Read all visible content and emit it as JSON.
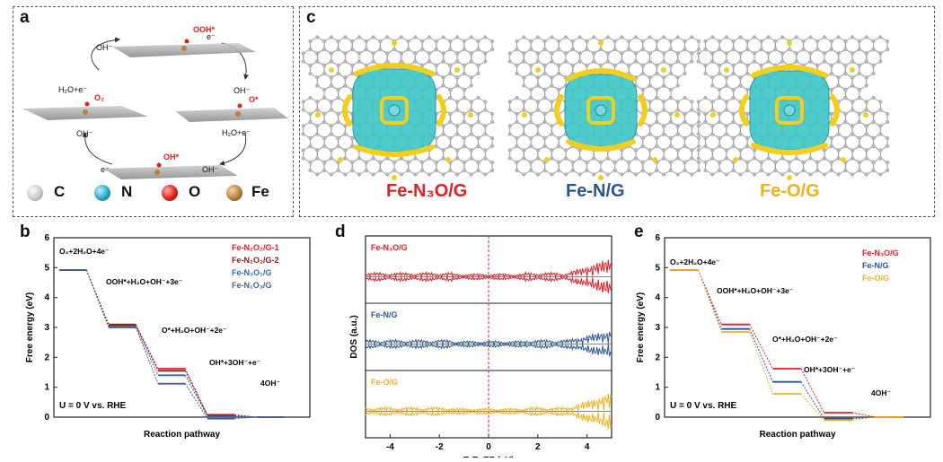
{
  "figure": {
    "panels": {
      "a": "a",
      "b": "b",
      "c": "c",
      "d": "d",
      "e": "e"
    }
  },
  "panel_a": {
    "labels": {
      "oh_top": "OH⁻",
      "e_top": "e⁻",
      "ooh": "OOH*",
      "h2o_e_left": "H₂O+e⁻",
      "o2": "O₂",
      "oh_left": "OH⁻",
      "oh_right_top": "OH⁻",
      "o_star": "O*",
      "h2o_e_right": "H₂O+e⁻",
      "e_bottom": "e⁻",
      "oh_star": "OH*",
      "oh_bottom_right": "OH⁻"
    },
    "legend": [
      {
        "symbol": "C",
        "color": "#c8c8c8"
      },
      {
        "symbol": "N",
        "color": "#2aa8c4"
      },
      {
        "symbol": "O",
        "color": "#e0201a"
      },
      {
        "symbol": "Fe",
        "color": "#b9813a"
      }
    ]
  },
  "panel_c": {
    "structures": [
      {
        "name": "Fe-N₃O/G",
        "color": "#e21f26"
      },
      {
        "name": "Fe-N/G",
        "color": "#2a5594"
      },
      {
        "name": "Fe-O/G",
        "color": "#f2b01e"
      }
    ]
  },
  "panel_b": {
    "chart_data": {
      "type": "line",
      "xlabel": "Reaction pathway",
      "ylabel": "Free energy (eV)",
      "ylim": [
        0,
        6
      ],
      "yticks": [
        "0",
        "1",
        "2",
        "3",
        "4",
        "5",
        "6"
      ],
      "annotations": [
        "O₂+2H₂O+4e⁻",
        "OOH*+H₂O+OH⁻+3e⁻",
        "O*+H₂O+OH⁻+2e⁻",
        "OH*+3OH⁻+e⁻",
        "4OH⁻"
      ],
      "condition": "U = 0 V vs. RHE",
      "series": [
        {
          "name": "Fe-N₂O₂/G-1",
          "color": "#e21f26",
          "values": [
            4.92,
            3.1,
            1.62,
            0.08,
            0
          ]
        },
        {
          "name": "Fe-N₂O₂/G-2",
          "color": "#8b1a1a",
          "values": [
            4.92,
            3.08,
            1.55,
            0.05,
            0
          ]
        },
        {
          "name": "Fe-N₃O₁/G",
          "color": "#2a6bb5",
          "values": [
            4.92,
            3.03,
            1.4,
            0.02,
            0
          ]
        },
        {
          "name": "Fe-N₁O₃/G",
          "color": "#4d5f7f",
          "values": [
            4.92,
            3.0,
            1.12,
            -0.05,
            0
          ]
        }
      ]
    }
  },
  "panel_d": {
    "chart_data": {
      "type": "line",
      "xlabel": "E-E_EF (eV)",
      "ylabel": "DOS (a.u.)",
      "xlim": [
        -5,
        5
      ],
      "xticks": [
        "-4",
        "-2",
        "0",
        "2",
        "4"
      ],
      "series": [
        {
          "name": "Fe-N₃O/G",
          "color": "#e21f26"
        },
        {
          "name": "Fe-N/G",
          "color": "#2a5594"
        },
        {
          "name": "Fe-O/G",
          "color": "#f2b01e"
        }
      ]
    }
  },
  "panel_e": {
    "chart_data": {
      "type": "line",
      "xlabel": "Reaction pathway",
      "ylabel": "Free energy (eV)",
      "ylim": [
        0,
        6
      ],
      "yticks": [
        "0",
        "1",
        "2",
        "3",
        "4",
        "5",
        "6"
      ],
      "annotations": [
        "O₂+2H₂O+4e⁻",
        "OOH*+H₂O+OH⁻+3e⁻",
        "O*+H₂O+OH⁻+2e⁻",
        "OH*+3OH⁻+e⁻",
        "4OH⁻"
      ],
      "condition": "U = 0 V vs. RHE",
      "series": [
        {
          "name": "Fe-N₃O/G",
          "color": "#e21f26",
          "values": [
            4.92,
            3.1,
            1.62,
            0.15,
            0
          ]
        },
        {
          "name": "Fe-N/G",
          "color": "#2a5594",
          "values": [
            4.92,
            2.95,
            1.18,
            -0.05,
            0
          ]
        },
        {
          "name": "Fe-O/G",
          "color": "#f2b01e",
          "values": [
            4.92,
            2.85,
            0.78,
            -0.1,
            0
          ]
        }
      ]
    }
  }
}
